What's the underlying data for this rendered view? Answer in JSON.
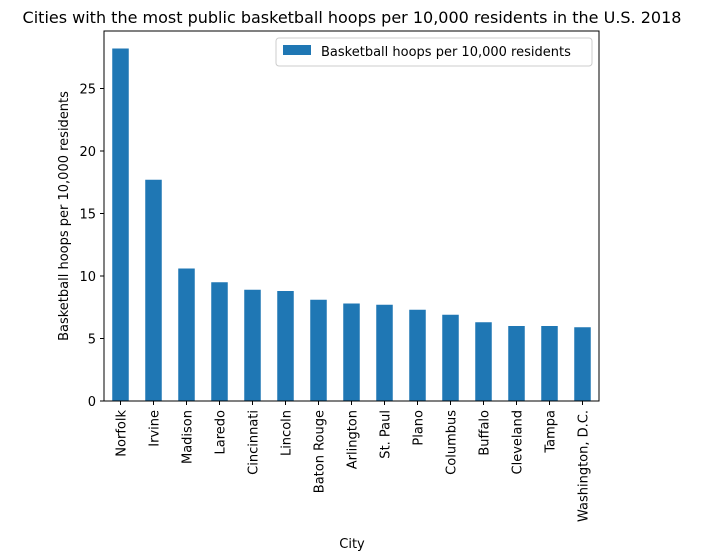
{
  "chart_data": {
    "type": "bar",
    "title": "Cities with the most public basketball hoops per 10,000 residents in the U.S. 2018",
    "xlabel": "City",
    "ylabel": "Basketball hoops per 10,000 residents",
    "categories": [
      "Norfolk",
      "Irvine",
      "Madison",
      "Laredo",
      "Cincinnati",
      "Lincoln",
      "Baton Rouge",
      "Arlington",
      "St. Paul",
      "Plano",
      "Columbus",
      "Buffalo",
      "Cleveland",
      "Tampa",
      "Washington, D.C."
    ],
    "series": [
      {
        "name": "Basketball hoops per 10,000 residents",
        "values": [
          28.2,
          17.7,
          10.6,
          9.5,
          8.9,
          8.8,
          8.1,
          7.8,
          7.7,
          7.3,
          6.9,
          6.3,
          6.0,
          6.0,
          5.9
        ],
        "color": "#1f77b4"
      }
    ],
    "yticks": [
      0,
      5,
      10,
      15,
      20,
      25
    ],
    "ylim": [
      0,
      29.6
    ],
    "grid": false,
    "legend_position": "top-right"
  }
}
